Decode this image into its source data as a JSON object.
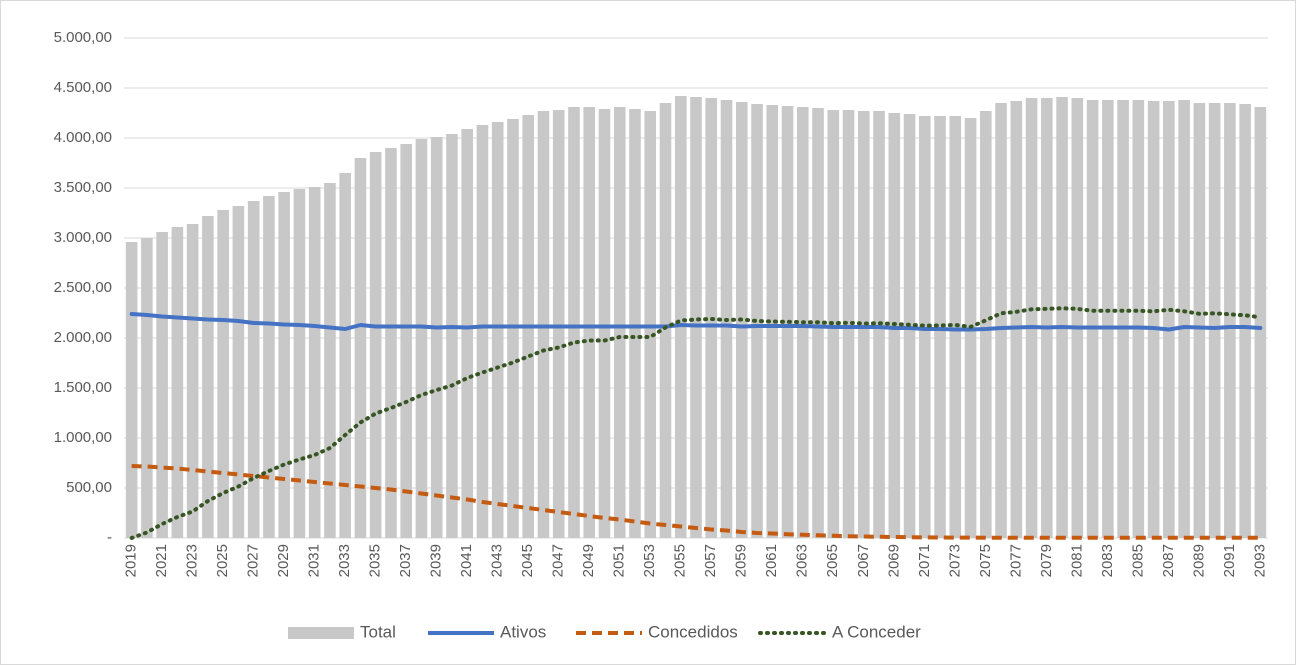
{
  "chart_data": {
    "type": "bar-line",
    "categories": [
      "2019",
      null,
      "2021",
      null,
      "2023",
      null,
      "2025",
      null,
      "2027",
      null,
      "2029",
      null,
      "2031",
      null,
      "2033",
      null,
      "2035",
      null,
      "2037",
      null,
      "2039",
      null,
      "2041",
      null,
      "2043",
      null,
      "2045",
      null,
      "2047",
      null,
      "2049",
      null,
      "2051",
      null,
      "2053",
      null,
      "2055",
      null,
      "2057",
      null,
      "2059",
      null,
      "2061",
      null,
      "2063",
      null,
      "2065",
      null,
      "2067",
      null,
      "2069",
      null,
      "2071",
      null,
      "2073",
      null,
      "2075",
      null,
      "2077",
      null,
      "2079",
      null,
      "2081",
      null,
      "2083",
      null,
      "2085",
      null,
      "2087",
      null,
      "2089",
      null,
      "2091",
      null,
      "2093"
    ],
    "series": [
      {
        "name": "Total",
        "type": "bar",
        "color": "#c8c8c8",
        "values": [
          2960,
          3000,
          3060,
          3110,
          3140,
          3220,
          3280,
          3320,
          3370,
          3420,
          3460,
          3490,
          3510,
          3550,
          3650,
          3800,
          3860,
          3900,
          3940,
          3990,
          4010,
          4040,
          4090,
          4130,
          4160,
          4190,
          4230,
          4270,
          4280,
          4310,
          4310,
          4290,
          4310,
          4290,
          4270,
          4350,
          4420,
          4410,
          4400,
          4380,
          4360,
          4340,
          4330,
          4320,
          4310,
          4300,
          4280,
          4280,
          4270,
          4270,
          4250,
          4240,
          4220,
          4220,
          4220,
          4200,
          4270,
          4350,
          4370,
          4400,
          4400,
          4410,
          4400,
          4380,
          4380,
          4380,
          4380,
          4370,
          4370,
          4380,
          4350,
          4350,
          4350,
          4340,
          4310
        ]
      },
      {
        "name": "Ativos",
        "type": "line",
        "dash": "solid",
        "color": "#4472c4",
        "values": [
          2240,
          2230,
          2215,
          2205,
          2195,
          2185,
          2180,
          2170,
          2150,
          2145,
          2135,
          2130,
          2120,
          2105,
          2090,
          2130,
          2115,
          2115,
          2115,
          2115,
          2105,
          2110,
          2105,
          2115,
          2115,
          2115,
          2115,
          2115,
          2115,
          2115,
          2115,
          2115,
          2115,
          2115,
          2115,
          2115,
          2130,
          2125,
          2125,
          2125,
          2115,
          2120,
          2120,
          2120,
          2120,
          2115,
          2110,
          2110,
          2110,
          2110,
          2100,
          2100,
          2090,
          2090,
          2085,
          2085,
          2090,
          2100,
          2105,
          2110,
          2105,
          2110,
          2105,
          2105,
          2105,
          2105,
          2105,
          2100,
          2085,
          2110,
          2105,
          2100,
          2110,
          2110,
          2100
        ]
      },
      {
        "name": "Concedidos",
        "type": "line",
        "dash": "dashed",
        "color": "#c55a11",
        "values": [
          720,
          715,
          705,
          695,
          680,
          665,
          650,
          635,
          620,
          605,
          590,
          575,
          560,
          545,
          530,
          515,
          500,
          485,
          465,
          445,
          425,
          405,
          385,
          360,
          340,
          320,
          300,
          280,
          260,
          240,
          220,
          200,
          185,
          165,
          145,
          130,
          115,
          100,
          85,
          75,
          60,
          50,
          45,
          38,
          32,
          27,
          22,
          18,
          15,
          12,
          10,
          8,
          6,
          5,
          4,
          4,
          3,
          3,
          3,
          3,
          3,
          3,
          3,
          3,
          3,
          3,
          3,
          3,
          3,
          3,
          3,
          3,
          3,
          3,
          3
        ]
      },
      {
        "name": "A Conceder",
        "type": "line",
        "dash": "dotted",
        "color": "#375623",
        "values": [
          0,
          55,
          140,
          210,
          265,
          370,
          450,
          515,
          600,
          670,
          735,
          785,
          830,
          900,
          1030,
          1155,
          1245,
          1300,
          1360,
          1430,
          1480,
          1525,
          1600,
          1655,
          1705,
          1755,
          1815,
          1875,
          1905,
          1955,
          1975,
          1975,
          2010,
          2010,
          2010,
          2105,
          2175,
          2185,
          2190,
          2180,
          2185,
          2170,
          2165,
          2162,
          2158,
          2158,
          2148,
          2152,
          2145,
          2148,
          2140,
          2132,
          2124,
          2125,
          2131,
          2111,
          2177,
          2247,
          2262,
          2287,
          2292,
          2297,
          2292,
          2272,
          2272,
          2272,
          2272,
          2267,
          2282,
          2267,
          2242,
          2247,
          2237,
          2227,
          2207
        ]
      }
    ],
    "ylim": [
      0,
      5000
    ],
    "yticks": [
      {
        "value": 0,
        "label": "-"
      },
      {
        "value": 500,
        "label": "500,00"
      },
      {
        "value": 1000,
        "label": "1.000,00"
      },
      {
        "value": 1500,
        "label": "1.500,00"
      },
      {
        "value": 2000,
        "label": "2.000,00"
      },
      {
        "value": 2500,
        "label": "2.500,00"
      },
      {
        "value": 3000,
        "label": "3.000,00"
      },
      {
        "value": 3500,
        "label": "3.500,00"
      },
      {
        "value": 4000,
        "label": "4.000,00"
      },
      {
        "value": 4500,
        "label": "4.500,00"
      },
      {
        "value": 5000,
        "label": "5.000,00"
      }
    ],
    "grid": true,
    "legend": "bottom"
  }
}
